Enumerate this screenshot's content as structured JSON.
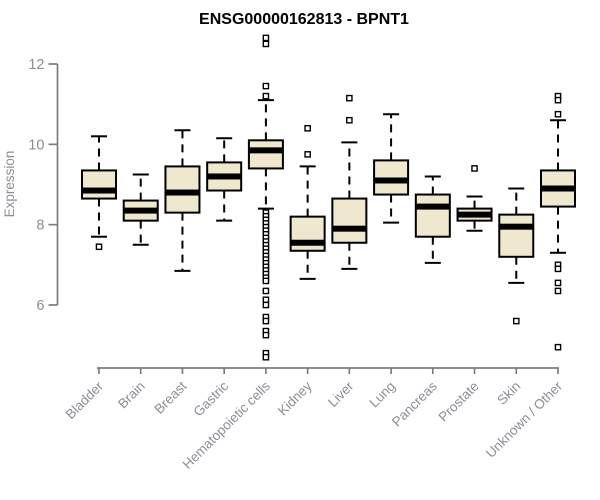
{
  "header": {
    "title": "ENSG00000162813 - BPNT1"
  },
  "colors": {
    "background": "#ffffff",
    "box_fill": "#EFE8CF",
    "box_stroke": "#000000",
    "median": "#000000",
    "outlier_fill": "#ffffff",
    "axis_line": "#7d7d7d",
    "tick_label": "#8a8f96",
    "title": "#000000"
  },
  "chart_data": {
    "type": "boxplot",
    "title": "ENSG00000162813 - BPNT1",
    "ylabel": "Expression",
    "xlabel": "",
    "ylim": [
      6,
      12
    ],
    "yticks": [
      6,
      8,
      10,
      12
    ],
    "grid": "off",
    "legend": "none",
    "categories": [
      "Bladder",
      "Brain",
      "Breast",
      "Gastric",
      "Hematopoietic cells",
      "Kidney",
      "Liver",
      "Lung",
      "Pancreas",
      "Prostate",
      "Skin",
      "Unknown / Other"
    ],
    "series": [
      {
        "name": "Bladder",
        "whisker_low": 7.7,
        "q1": 8.65,
        "median": 8.85,
        "q3": 9.35,
        "whisker_high": 10.2,
        "outliers": [
          7.45
        ]
      },
      {
        "name": "Brain",
        "whisker_low": 7.5,
        "q1": 8.1,
        "median": 8.35,
        "q3": 8.6,
        "whisker_high": 9.25,
        "outliers": []
      },
      {
        "name": "Breast",
        "whisker_low": 6.85,
        "q1": 8.3,
        "median": 8.8,
        "q3": 9.45,
        "whisker_high": 10.35,
        "outliers": []
      },
      {
        "name": "Gastric",
        "whisker_low": 8.1,
        "q1": 8.85,
        "median": 9.2,
        "q3": 9.55,
        "whisker_high": 10.15,
        "outliers": []
      },
      {
        "name": "Hematopoietic cells",
        "whisker_low": 8.4,
        "q1": 9.4,
        "median": 9.85,
        "q3": 10.1,
        "whisker_high": 11.1,
        "outliers": [
          12.65,
          12.5,
          11.45,
          11.2,
          8.3,
          8.21,
          8.12,
          8.03,
          7.94,
          7.85,
          7.76,
          7.67,
          7.58,
          7.49,
          7.4,
          7.31,
          7.22,
          7.13,
          7.04,
          6.95,
          6.86,
          6.77,
          6.68,
          6.6,
          6.35,
          6.13,
          6.0,
          5.7,
          5.6,
          5.35,
          5.25,
          4.8,
          4.7
        ]
      },
      {
        "name": "Kidney",
        "whisker_low": 6.65,
        "q1": 7.35,
        "median": 7.55,
        "q3": 8.2,
        "whisker_high": 9.45,
        "outliers": [
          10.4,
          9.75
        ]
      },
      {
        "name": "Liver",
        "whisker_low": 6.9,
        "q1": 7.55,
        "median": 7.9,
        "q3": 8.65,
        "whisker_high": 10.05,
        "outliers": [
          11.15,
          10.6
        ]
      },
      {
        "name": "Lung",
        "whisker_low": 8.05,
        "q1": 8.75,
        "median": 9.1,
        "q3": 9.6,
        "whisker_high": 10.75,
        "outliers": []
      },
      {
        "name": "Pancreas",
        "whisker_low": 7.05,
        "q1": 7.7,
        "median": 8.45,
        "q3": 8.75,
        "whisker_high": 9.2,
        "outliers": []
      },
      {
        "name": "Prostate",
        "whisker_low": 7.85,
        "q1": 8.1,
        "median": 8.25,
        "q3": 8.4,
        "whisker_high": 8.7,
        "outliers": [
          9.4
        ]
      },
      {
        "name": "Skin",
        "whisker_low": 6.55,
        "q1": 7.2,
        "median": 7.95,
        "q3": 8.25,
        "whisker_high": 8.9,
        "outliers": [
          5.6
        ]
      },
      {
        "name": "Unknown / Other",
        "whisker_low": 7.3,
        "q1": 8.45,
        "median": 8.9,
        "q3": 9.35,
        "whisker_high": 10.6,
        "outliers": [
          11.2,
          11.1,
          10.75,
          7.0,
          6.9,
          6.55,
          6.35,
          4.95
        ]
      }
    ]
  }
}
